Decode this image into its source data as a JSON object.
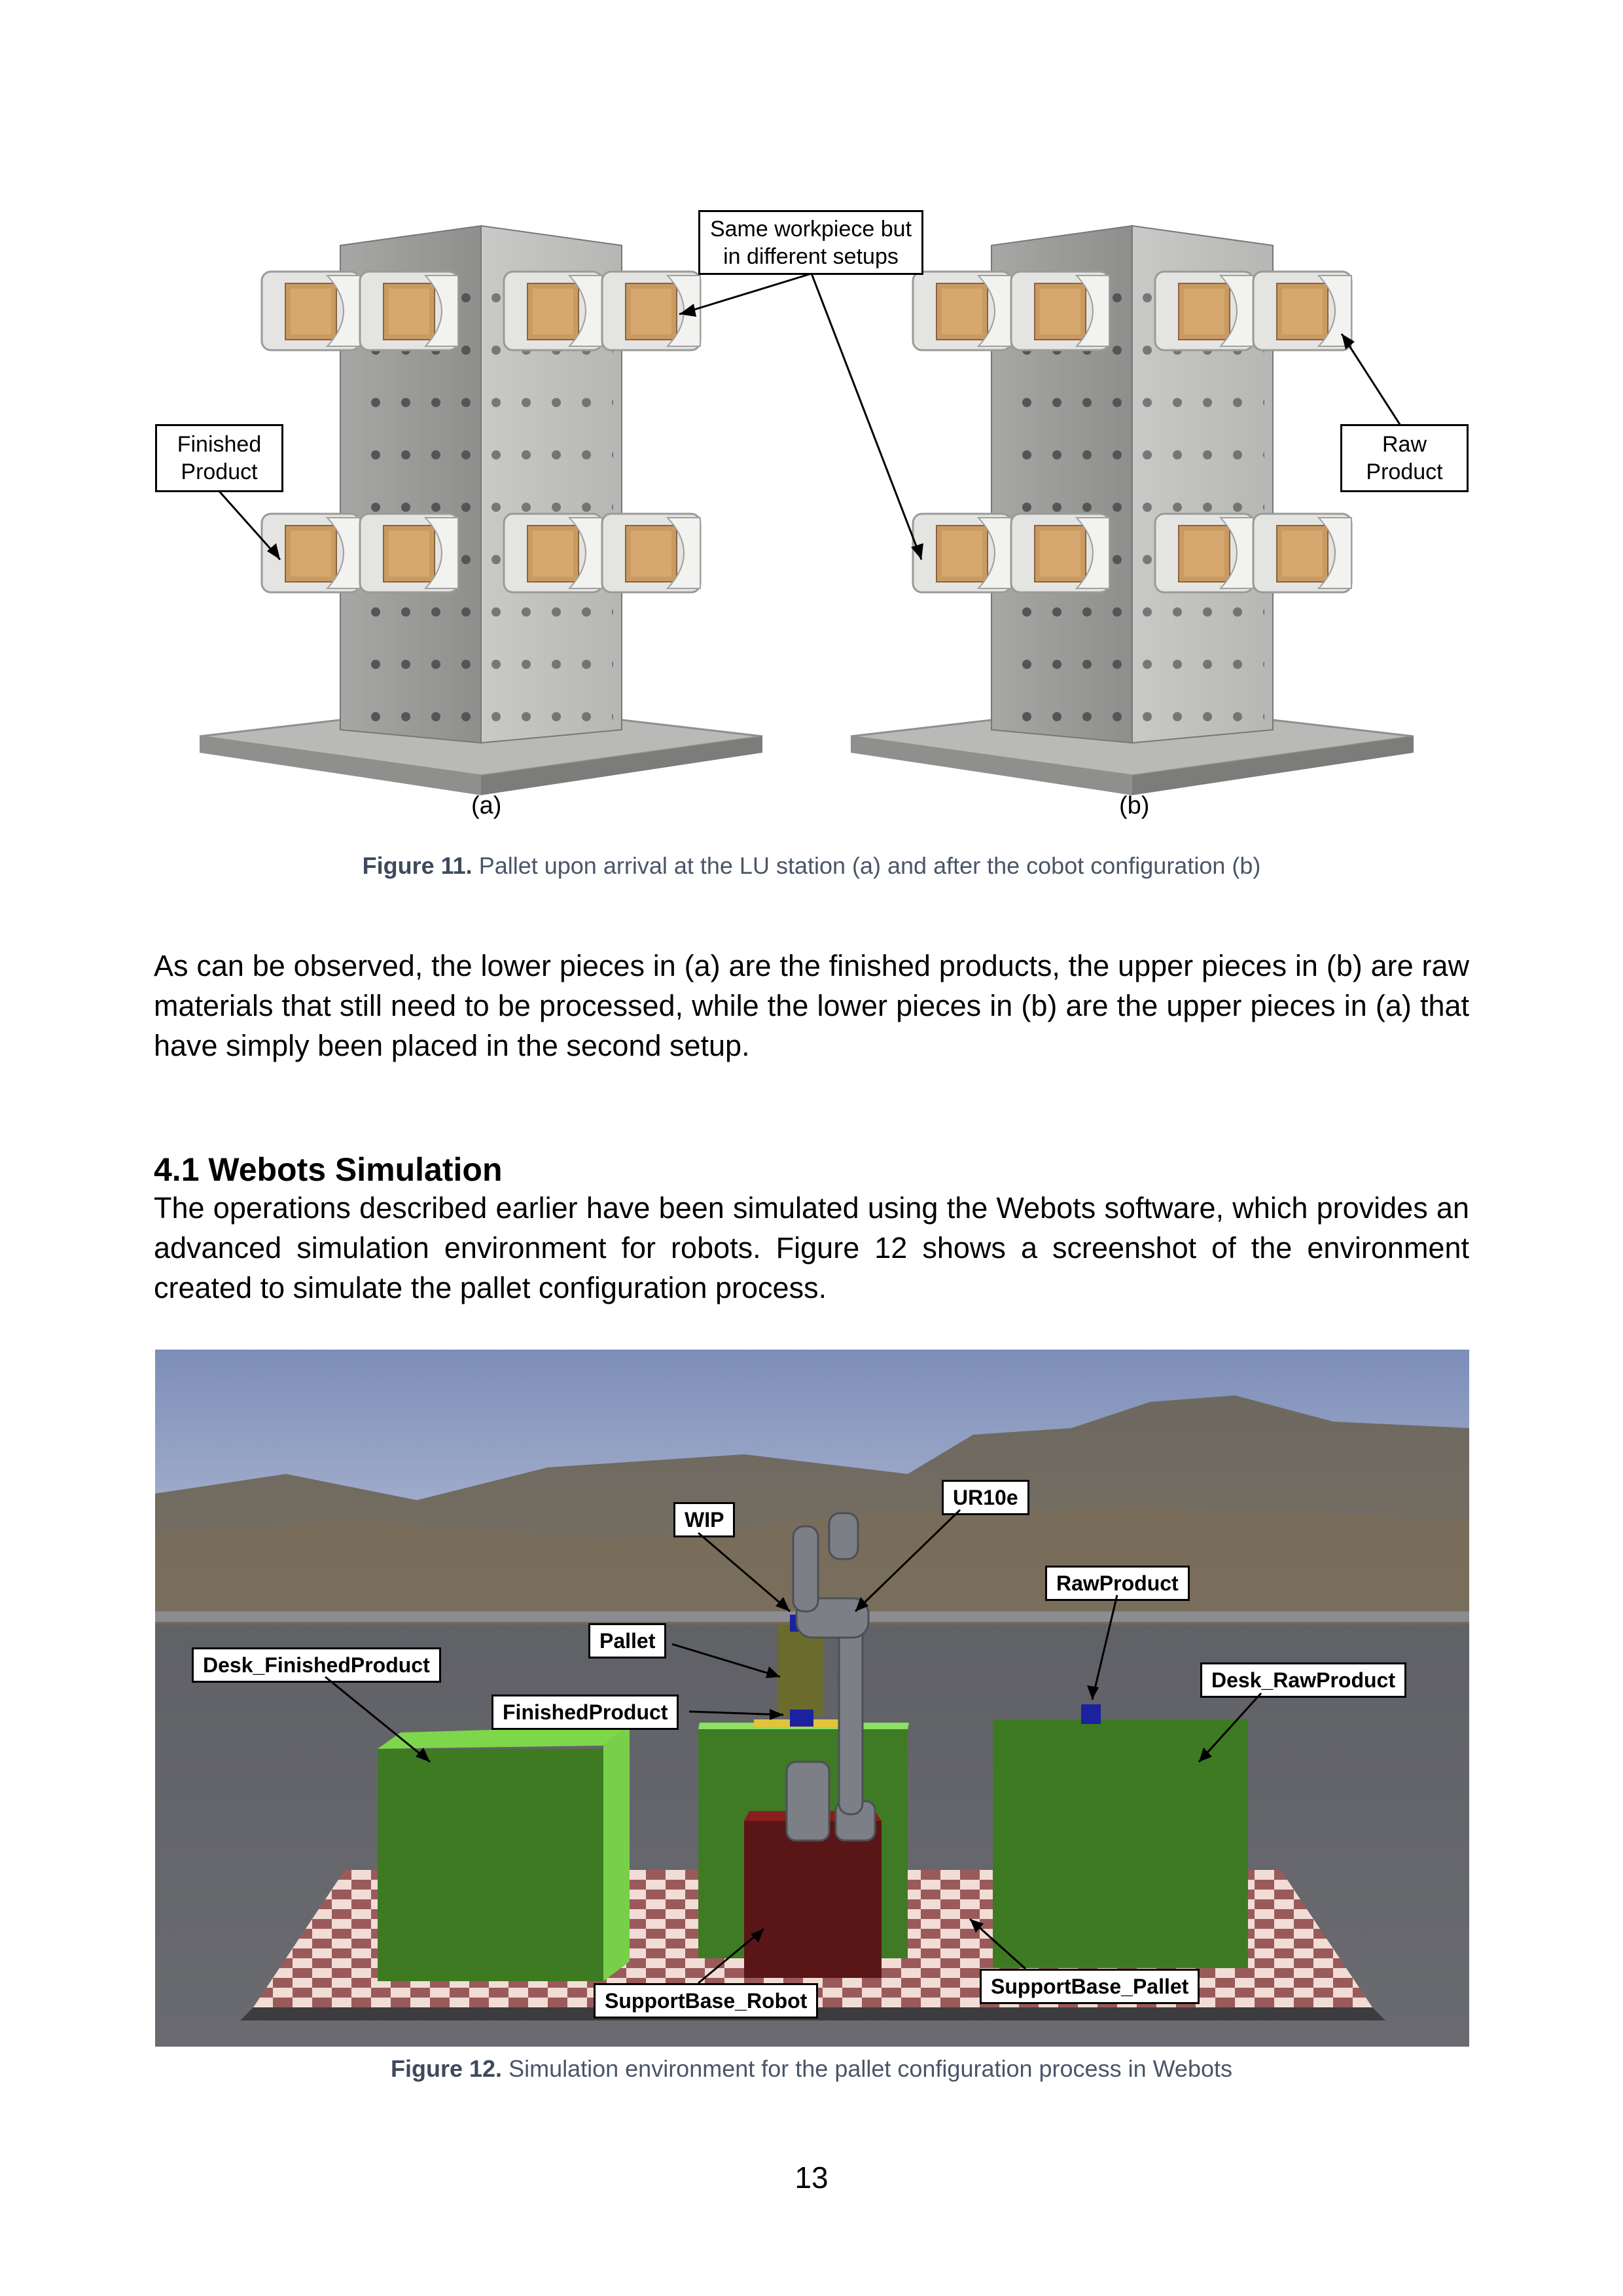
{
  "figure11": {
    "callouts": {
      "same_workpiece": [
        "Same workpiece but",
        "in different setups"
      ],
      "finished_product": [
        "Finished",
        "Product"
      ],
      "raw_product": [
        "Raw",
        "Product"
      ]
    },
    "sublabel_a": "(a)",
    "sublabel_b": "(b)",
    "caption_prefix": "Figure 11.",
    "caption_text": " Pallet upon arrival at the LU station (a) and after the cobot configuration (b)"
  },
  "paragraph1": "As can be observed, the lower pieces in (a) are the finished products, the upper pieces in (b) are raw materials that still need to be processed, while the lower pieces in (b) are the upper pieces in (a) that have simply been placed in the second setup.",
  "section": {
    "heading": "4.1 Webots Simulation",
    "paragraph": "The operations described earlier have been simulated using the Webots software, which provides an advanced simulation environment for robots. Figure 12 shows a screenshot of the environment created to simulate the pallet configuration process."
  },
  "figure12": {
    "labels": {
      "wip": "WIP",
      "ur10e": "UR10e",
      "raw_product": "RawProduct",
      "pallet": "Pallet",
      "desk_finished": "Desk_FinishedProduct",
      "desk_raw": "Desk_RawProduct",
      "finished_product": "FinishedProduct",
      "support_robot": "SupportBase_Robot",
      "support_pallet": "SupportBase_Pallet"
    },
    "caption_prefix": "Figure 12.",
    "caption_text": " Simulation environment for the pallet configuration process in Webots"
  },
  "page_number": "13"
}
